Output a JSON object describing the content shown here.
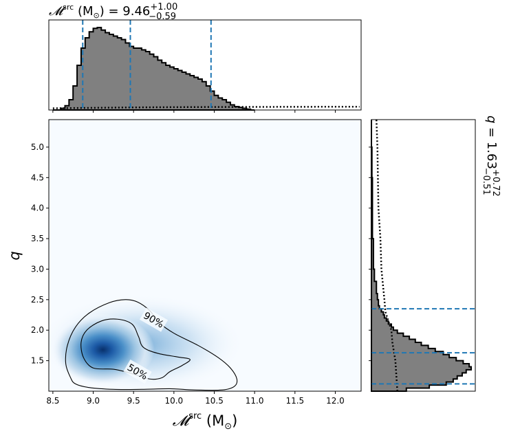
{
  "chart_data": {
    "type": "corner",
    "colors": {
      "hist_fill": "#808080",
      "hist_edge": "#000000",
      "quantile_lines": "#1f77b4",
      "density_low": "#f7fbff",
      "density_high": "#08306b"
    },
    "mc_marginal": {
      "title": "𝓜src (M⊙) = 9.46+1.00−0.59",
      "title_parts": {
        "symbol": "𝓜",
        "sup": "src",
        "unit": " (M",
        "sun": "⊙",
        "close": ") = ",
        "median": "9.46",
        "plus": "+1.00",
        "minus": "−0.59"
      },
      "quantiles": [
        8.87,
        9.46,
        10.46
      ],
      "bin_edges": [
        8.5,
        8.6,
        8.65,
        8.7,
        8.75,
        8.8,
        8.85,
        8.9,
        8.95,
        9.0,
        9.05,
        9.1,
        9.15,
        9.2,
        9.25,
        9.3,
        9.35,
        9.4,
        9.45,
        9.5,
        9.55,
        9.6,
        9.65,
        9.7,
        9.75,
        9.8,
        9.85,
        9.9,
        9.95,
        10.0,
        10.05,
        10.1,
        10.15,
        10.2,
        10.25,
        10.3,
        10.35,
        10.4,
        10.45,
        10.5,
        10.55,
        10.6,
        10.65,
        10.7,
        10.75,
        10.8,
        10.85,
        10.9,
        10.95,
        11.0
      ],
      "densities": [
        0,
        0.02,
        0.05,
        0.12,
        0.28,
        0.52,
        0.72,
        0.84,
        0.91,
        0.95,
        0.96,
        0.93,
        0.9,
        0.88,
        0.86,
        0.84,
        0.82,
        0.78,
        0.74,
        0.72,
        0.72,
        0.7,
        0.68,
        0.65,
        0.62,
        0.58,
        0.55,
        0.52,
        0.5,
        0.48,
        0.46,
        0.44,
        0.42,
        0.4,
        0.38,
        0.36,
        0.33,
        0.28,
        0.22,
        0.17,
        0.14,
        0.12,
        0.09,
        0.06,
        0.04,
        0.03,
        0.02,
        0.01,
        0
      ],
      "prior_x": [
        8.5,
        9.0,
        9.5,
        10.0,
        10.5,
        11.0,
        11.5,
        12.0,
        12.3
      ],
      "prior_y": [
        0.02,
        0.025,
        0.03,
        0.033,
        0.035,
        0.036,
        0.037,
        0.038,
        0.038
      ]
    },
    "q_marginal": {
      "title": "q = 1.63+0.72−0.51",
      "title_parts": {
        "sym": "q",
        "eq": " = 1.63",
        "plus": "+0.72",
        "minus": "−0.51"
      },
      "quantiles": [
        1.12,
        1.63,
        2.35
      ],
      "bin_edges": [
        1.0,
        1.05,
        1.1,
        1.15,
        1.2,
        1.25,
        1.3,
        1.35,
        1.4,
        1.45,
        1.5,
        1.55,
        1.6,
        1.65,
        1.7,
        1.75,
        1.8,
        1.85,
        1.9,
        1.95,
        2.0,
        2.05,
        2.1,
        2.15,
        2.2,
        2.25,
        2.3,
        2.35,
        2.4,
        2.5,
        2.6,
        2.8,
        3.0,
        3.2,
        3.5,
        4.0,
        4.5,
        5.0,
        5.45
      ],
      "densities": [
        0.35,
        0.58,
        0.75,
        0.82,
        0.86,
        0.91,
        0.95,
        1.0,
        0.98,
        0.92,
        0.85,
        0.78,
        0.72,
        0.64,
        0.57,
        0.5,
        0.44,
        0.38,
        0.32,
        0.26,
        0.22,
        0.2,
        0.17,
        0.15,
        0.13,
        0.12,
        0.1,
        0.08,
        0.07,
        0.06,
        0.05,
        0.03,
        0.02,
        0.02,
        0.01,
        0.01,
        0.005,
        0.0
      ],
      "prior_q": [
        1.0,
        1.5,
        1.8,
        2.0,
        2.3,
        2.5,
        3.0,
        3.5,
        4.0,
        5.0,
        5.45
      ],
      "prior_d": [
        0.26,
        0.24,
        0.21,
        0.2,
        0.14,
        0.13,
        0.1,
        0.09,
        0.07,
        0.06,
        0.05
      ]
    },
    "joint": {
      "xlabel_parts": {
        "symbol": "𝓜",
        "sup": "src",
        "unit": " (M",
        "sun": "⊙",
        "close": ")"
      },
      "ylabel": "q",
      "xlim": [
        8.45,
        12.32
      ],
      "ylim": [
        1.0,
        5.45
      ],
      "x_ticks": [
        "8.5",
        "9.0",
        "9.5",
        "10.0",
        "10.5",
        "11.0",
        "11.5",
        "12.0"
      ],
      "y_ticks": [
        "1.5",
        "2.0",
        "2.5",
        "3.0",
        "3.5",
        "4.0",
        "4.5",
        "5.0"
      ],
      "density_peak": {
        "x": 9.12,
        "q": 1.68
      },
      "contours": [
        {
          "label": "90%",
          "label_at": {
            "x": 9.75,
            "q": 2.17
          },
          "points": [
            [
              8.72,
              1.22
            ],
            [
              8.66,
              1.45
            ],
            [
              8.68,
              1.75
            ],
            [
              8.78,
              2.05
            ],
            [
              8.95,
              2.28
            ],
            [
              9.2,
              2.45
            ],
            [
              9.4,
              2.5
            ],
            [
              9.55,
              2.46
            ],
            [
              9.7,
              2.32
            ],
            [
              9.82,
              2.12
            ],
            [
              10.0,
              1.95
            ],
            [
              10.3,
              1.75
            ],
            [
              10.55,
              1.55
            ],
            [
              10.7,
              1.38
            ],
            [
              10.78,
              1.2
            ],
            [
              10.75,
              1.08
            ],
            [
              10.6,
              1.02
            ],
            [
              10.25,
              1.02
            ],
            [
              9.95,
              1.04
            ],
            [
              9.6,
              1.03
            ],
            [
              9.25,
              1.03
            ],
            [
              8.95,
              1.06
            ],
            [
              8.78,
              1.12
            ]
          ]
        },
        {
          "label": "50%",
          "label_at": {
            "x": 9.55,
            "q": 1.32
          },
          "points": [
            [
              8.88,
              1.55
            ],
            [
              8.85,
              1.8
            ],
            [
              8.92,
              2.0
            ],
            [
              9.1,
              2.15
            ],
            [
              9.3,
              2.18
            ],
            [
              9.48,
              2.1
            ],
            [
              9.56,
              1.9
            ],
            [
              9.62,
              1.72
            ],
            [
              9.8,
              1.62
            ],
            [
              10.05,
              1.56
            ],
            [
              10.2,
              1.52
            ],
            [
              10.1,
              1.42
            ],
            [
              9.95,
              1.32
            ],
            [
              9.85,
              1.22
            ],
            [
              9.7,
              1.2
            ],
            [
              9.45,
              1.3
            ],
            [
              9.25,
              1.36
            ],
            [
              9.0,
              1.38
            ]
          ]
        }
      ]
    }
  }
}
